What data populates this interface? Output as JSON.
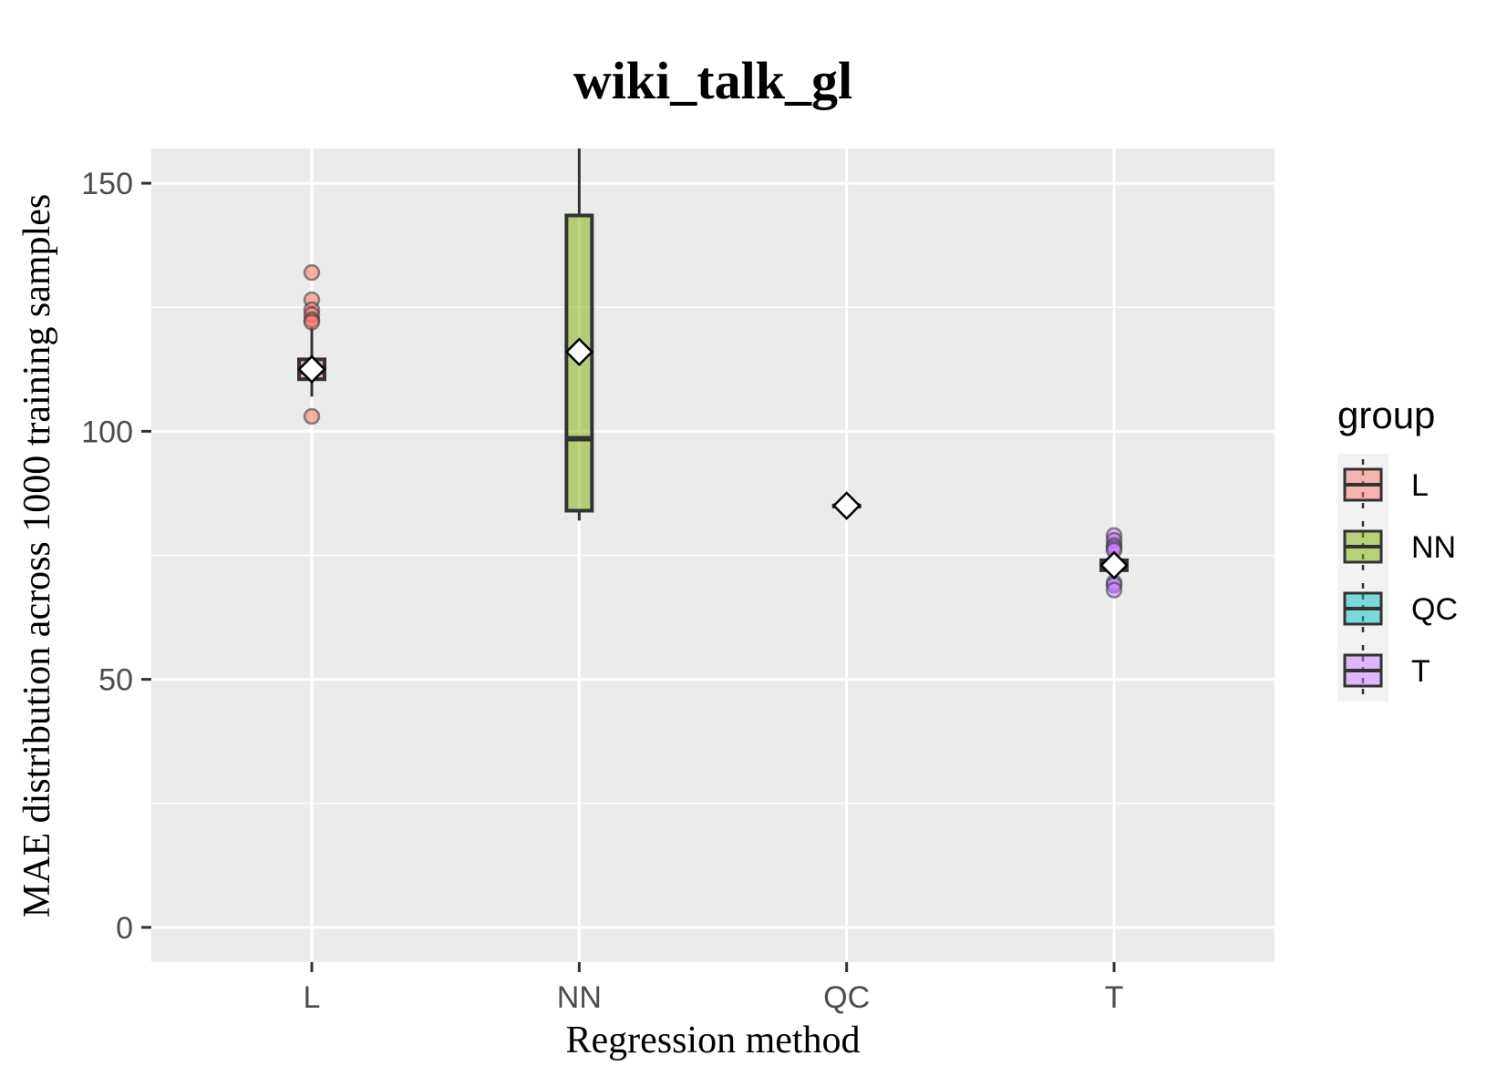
{
  "chart_data": {
    "type": "box",
    "title": "wiki_talk_gl",
    "xlabel": "Regression method",
    "ylabel": "MAE distribution across 1000 training samples",
    "categories": [
      "L",
      "NN",
      "QC",
      "T"
    ],
    "ylim": [
      -7,
      157
    ],
    "yticks": [
      0,
      50,
      100,
      150
    ],
    "grid": true,
    "legend": {
      "title": "group",
      "position": "right",
      "entries": [
        "L",
        "NN",
        "QC",
        "T"
      ]
    },
    "colors": {
      "L": "#f8766d",
      "NN": "#7cae00",
      "QC": "#00bfc4",
      "T": "#c77cff",
      "panel": "#ebebeb",
      "grid": "#ffffff",
      "box_stroke": "#333333"
    },
    "series": [
      {
        "name": "L",
        "q1": 110.5,
        "median": 112,
        "q3": 114.5,
        "whisker_low": 107,
        "whisker_high": 121,
        "mean": 112.5,
        "outliers": [
          132,
          126.5,
          124.5,
          123.5,
          122.5,
          122,
          103
        ]
      },
      {
        "name": "NN",
        "q1": 84,
        "median": 98.5,
        "q3": 143.5,
        "whisker_low": 82,
        "whisker_high": 157,
        "mean": 116,
        "outliers": []
      },
      {
        "name": "QC",
        "q1": 85,
        "median": 85,
        "q3": 85,
        "whisker_low": 85,
        "whisker_high": 85,
        "mean": 85,
        "outliers": []
      },
      {
        "name": "T",
        "q1": 72,
        "median": 73,
        "q3": 74,
        "whisker_low": 71,
        "whisker_high": 75.5,
        "mean": 73,
        "outliers": [
          79,
          78,
          77,
          76.5,
          76,
          69.5,
          69,
          68
        ]
      }
    ]
  }
}
